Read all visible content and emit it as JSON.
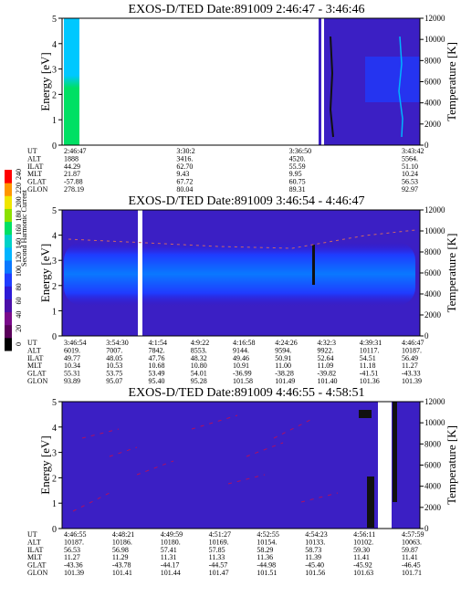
{
  "chart_data": [
    {
      "type": "heatmap",
      "title": "EXOS-D/TED Date:891009 2:46:47 - 3:46:46",
      "ylabel": "Energy [eV]",
      "ylabel_right": "Temperature [K]",
      "ylim": [
        0,
        5
      ],
      "ylim_right": [
        0,
        12000
      ],
      "yticks": [
        "0",
        "1",
        "2",
        "3",
        "4",
        "5"
      ],
      "yticks_right": [
        "0",
        "2000",
        "4000",
        "6000",
        "8000",
        "10000",
        "12000"
      ],
      "rows": [
        {
          "name": "UT",
          "values": [
            "2:46:47",
            "3:30:2",
            "3:36:50",
            "3:43:42"
          ]
        },
        {
          "name": "ALT",
          "values": [
            "1888",
            "3416.",
            "4520.",
            "5564."
          ]
        },
        {
          "name": "ILAT",
          "values": [
            "44.29",
            "62.70",
            "55.59",
            "51.10"
          ]
        },
        {
          "name": "MLT",
          "values": [
            "21.87",
            "9.43",
            "9.95",
            "10.24"
          ]
        },
        {
          "name": "GLAT",
          "values": [
            "-57.88",
            "67.72",
            "60.75",
            "56.53"
          ]
        },
        {
          "name": "GLON",
          "values": [
            "278.19",
            "80.04",
            "89.31",
            "92.97"
          ]
        }
      ]
    },
    {
      "type": "heatmap",
      "title": "EXOS-D/TED Date:891009 3:46:54 - 4:46:47",
      "ylabel": "Energy [eV]",
      "ylabel_right": "Temperature [K]",
      "ylim": [
        0,
        5
      ],
      "ylim_right": [
        0,
        12000
      ],
      "yticks": [
        "0",
        "1",
        "2",
        "3",
        "4",
        "5"
      ],
      "yticks_right": [
        "0",
        "2000",
        "4000",
        "6000",
        "8000",
        "10000",
        "12000"
      ],
      "rows": [
        {
          "name": "UT",
          "values": [
            "3:46:54",
            "3:54:30",
            "4:1:54",
            "4:9:22",
            "4:16:58",
            "4:24:26",
            "4:32:3",
            "4:39:31",
            "4:46:47"
          ]
        },
        {
          "name": "ALT",
          "values": [
            "6019.",
            "7007.",
            "7842.",
            "8553.",
            "9144.",
            "9594.",
            "9922.",
            "10117.",
            "10187."
          ]
        },
        {
          "name": "ILAT",
          "values": [
            "49.77",
            "48.05",
            "47.76",
            "48.32",
            "49.46",
            "50.91",
            "52.64",
            "54.51",
            "56.49"
          ]
        },
        {
          "name": "MLT",
          "values": [
            "10.34",
            "10.53",
            "10.68",
            "10.80",
            "10.91",
            "11.00",
            "11.09",
            "11.18",
            "11.27"
          ]
        },
        {
          "name": "GLAT",
          "values": [
            "55.31",
            "53.75",
            "53.49",
            "54.01",
            "-36.99",
            "-38.28",
            "-39.82",
            "-41.51",
            "-43.33"
          ]
        },
        {
          "name": "GLON",
          "values": [
            "93.89",
            "95.07",
            "95.40",
            "95.28",
            "101.58",
            "101.49",
            "101.40",
            "101.36",
            "101.39"
          ]
        }
      ]
    },
    {
      "type": "heatmap",
      "title": "EXOS-D/TED Date:891009 4:46:55 - 4:58:51",
      "ylabel": "Energy [eV]",
      "ylabel_right": "Temperature [K]",
      "ylim": [
        0,
        5
      ],
      "ylim_right": [
        0,
        12000
      ],
      "yticks": [
        "0",
        "1",
        "2",
        "3",
        "4",
        "5"
      ],
      "yticks_right": [
        "0",
        "2000",
        "4000",
        "6000",
        "8000",
        "10000",
        "12000"
      ],
      "rows": [
        {
          "name": "UT",
          "values": [
            "4:46:55",
            "4:48:21",
            "4:49:59",
            "4:51:27",
            "4:52:55",
            "4:54:23",
            "4:56:11",
            "4:57:59"
          ]
        },
        {
          "name": "ALT",
          "values": [
            "10187.",
            "10186.",
            "10180.",
            "10169.",
            "10154.",
            "10133.",
            "10102.",
            "10063."
          ]
        },
        {
          "name": "ILAT",
          "values": [
            "56.53",
            "56.98",
            "57.41",
            "57.85",
            "58.29",
            "58.73",
            "59.30",
            "59.87"
          ]
        },
        {
          "name": "MLT",
          "values": [
            "11.27",
            "11.29",
            "11.31",
            "11.33",
            "11.36",
            "11.39",
            "11.41",
            "11.41"
          ]
        },
        {
          "name": "GLAT",
          "values": [
            "-43.36",
            "-43.78",
            "-44.17",
            "-44.57",
            "-44.98",
            "-45.40",
            "-45.92",
            "-46.45"
          ]
        },
        {
          "name": "GLON",
          "values": [
            "101.39",
            "101.41",
            "101.44",
            "101.47",
            "101.51",
            "101.56",
            "101.63",
            "101.71"
          ]
        }
      ]
    }
  ],
  "colorbar": {
    "label": "Second Harmonic Current",
    "ticks": [
      "0",
      "20",
      "40",
      "60",
      "80",
      "100",
      "120",
      "140",
      "160",
      "180",
      "200",
      "220",
      "240"
    ],
    "colors": [
      "#000000",
      "#5a005a",
      "#7a0a8a",
      "#4b0fa8",
      "#2d1ad6",
      "#1f3cff",
      "#0a78ff",
      "#00b4ff",
      "#00d2c8",
      "#00e064",
      "#8ce000",
      "#f0e600",
      "#ff9600",
      "#ff0000"
    ]
  }
}
